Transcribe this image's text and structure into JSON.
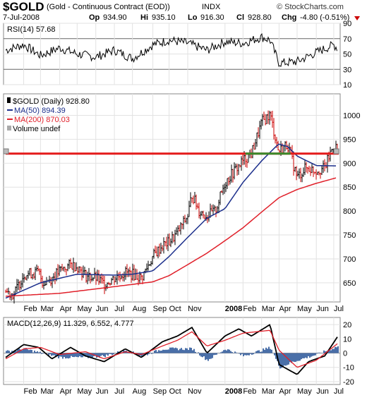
{
  "header": {
    "symbol": "$GOLD",
    "description": "(Gold - Continuous Contract (EOD))",
    "exchange": "INDX",
    "watermark": "© StockCharts.com",
    "date": "7-Jul-2008",
    "op_label": "Op",
    "op": "934.90",
    "hi_label": "Hi",
    "hi": "935.10",
    "lo_label": "Lo",
    "lo": "916.30",
    "cl_label": "Cl",
    "cl": "928.80",
    "chg_label": "Chg",
    "chg": "-4.80 (-0.51%)"
  },
  "colors": {
    "price_bar": "#000000",
    "down_bar": "#cc0000",
    "ma50": "#1c2f8c",
    "ma200": "#e0202a",
    "hline": "#e41a1a",
    "hline_overlap": "#3a8a2a",
    "macd": "#000000",
    "signal": "#e0202a",
    "histogram": "#4a6fa8",
    "rsi": "#000000",
    "rsi_fill": "#888888",
    "panel_bg": "#ffffff",
    "grid": "#e2e2e2"
  },
  "chart_data": [
    {
      "type": "line",
      "panel": "rsi",
      "label": "RSI(14) 57.68",
      "ylim": [
        10,
        90
      ],
      "yticks": [
        10,
        30,
        50,
        70,
        90
      ],
      "reference_lines": [
        30,
        70
      ],
      "x_range": [
        "2007-01-02",
        "2008-07-07"
      ],
      "series": [
        {
          "name": "RSI(14)",
          "x": [
            "2007-01-02",
            "2007-02-01",
            "2007-03-01",
            "2007-04-02",
            "2007-05-01",
            "2007-06-01",
            "2007-07-02",
            "2007-08-01",
            "2007-09-04",
            "2007-10-01",
            "2007-11-01",
            "2007-12-03",
            "2008-01-02",
            "2008-02-01",
            "2008-03-03",
            "2008-03-17",
            "2008-04-01",
            "2008-05-01",
            "2008-06-02",
            "2008-07-01",
            "2008-07-07"
          ],
          "values": [
            55,
            62,
            48,
            58,
            50,
            46,
            55,
            44,
            62,
            68,
            64,
            55,
            66,
            64,
            72,
            68,
            38,
            40,
            52,
            62,
            57.68
          ]
        }
      ]
    },
    {
      "type": "line",
      "panel": "price",
      "title": "$GOLD (Daily) 928.80",
      "ylim": [
        610,
        1045
      ],
      "yticks": [
        650,
        700,
        750,
        800,
        850,
        900,
        950,
        1000
      ],
      "x_range": [
        "2007-01-02",
        "2008-07-07"
      ],
      "xticks": [
        "Feb",
        "Mar",
        "Apr",
        "May",
        "Jun",
        "Jul",
        "Aug",
        "Sep",
        "Oct",
        "Nov",
        "2008",
        "Feb",
        "Mar",
        "Apr",
        "May",
        "Jun",
        "Jul"
      ],
      "horizontal_line": 920,
      "series": [
        {
          "name": "$GOLD (Daily) 928.80",
          "x": [
            "2007-01-02",
            "2007-01-16",
            "2007-02-01",
            "2007-02-26",
            "2007-03-05",
            "2007-03-20",
            "2007-04-02",
            "2007-04-20",
            "2007-05-01",
            "2007-05-15",
            "2007-06-01",
            "2007-06-15",
            "2007-07-02",
            "2007-07-20",
            "2007-08-01",
            "2007-08-16",
            "2007-09-04",
            "2007-09-20",
            "2007-10-01",
            "2007-10-15",
            "2007-11-01",
            "2007-11-08",
            "2007-11-20",
            "2007-12-03",
            "2007-12-17",
            "2008-01-02",
            "2008-01-15",
            "2008-02-01",
            "2008-02-15",
            "2008-03-03",
            "2008-03-17",
            "2008-03-31",
            "2008-04-15",
            "2008-05-01",
            "2008-05-15",
            "2008-06-02",
            "2008-06-16",
            "2008-07-01",
            "2008-07-07"
          ],
          "values": [
            632,
            626,
            668,
            672,
            650,
            660,
            675,
            688,
            685,
            665,
            660,
            648,
            660,
            672,
            668,
            660,
            705,
            728,
            735,
            755,
            790,
            835,
            800,
            790,
            800,
            860,
            880,
            905,
            920,
            985,
            1002,
            925,
            940,
            870,
            890,
            885,
            890,
            940,
            928.8
          ]
        },
        {
          "name": "MA(50) 894.39",
          "x": [
            "2007-01-02",
            "2007-03-01",
            "2007-05-01",
            "2007-07-02",
            "2007-08-01",
            "2007-09-04",
            "2007-10-01",
            "2007-11-01",
            "2007-12-03",
            "2008-01-02",
            "2008-02-01",
            "2008-03-03",
            "2008-03-31",
            "2008-04-15",
            "2008-05-01",
            "2008-06-02",
            "2008-07-07"
          ],
          "values": [
            618,
            650,
            668,
            666,
            668,
            675,
            705,
            745,
            785,
            805,
            860,
            905,
            940,
            935,
            915,
            895,
            894.39
          ]
        },
        {
          "name": "MA(200) 870.03",
          "x": [
            "2007-01-02",
            "2007-04-02",
            "2007-07-02",
            "2007-09-04",
            "2007-10-01",
            "2007-11-01",
            "2007-12-03",
            "2008-01-02",
            "2008-02-01",
            "2008-03-03",
            "2008-04-01",
            "2008-05-01",
            "2008-06-02",
            "2008-07-07"
          ],
          "values": [
            622,
            628,
            642,
            652,
            665,
            688,
            712,
            738,
            765,
            798,
            828,
            845,
            858,
            870.03
          ]
        }
      ],
      "legend": [
        "$GOLD (Daily) 928.80",
        "MA(50) 894.39",
        "MA(200) 870.03",
        "Volume undef"
      ]
    },
    {
      "type": "line",
      "panel": "macd",
      "label": "MACD(12,26,9) 11.329, 6.552, 4.777",
      "ylim": [
        -22,
        25
      ],
      "yticks": [
        -20,
        -10,
        0,
        10,
        20
      ],
      "x_range": [
        "2007-01-02",
        "2008-07-07"
      ],
      "xticks": [
        "Feb",
        "Mar",
        "Apr",
        "May",
        "Jun",
        "Jul",
        "Aug",
        "Sep",
        "Oct",
        "Nov",
        "2008",
        "Feb",
        "Mar",
        "Apr",
        "May",
        "Jun",
        "Jul"
      ],
      "series": [
        {
          "name": "MACD",
          "x": [
            "2007-01-02",
            "2007-02-01",
            "2007-02-26",
            "2007-03-20",
            "2007-04-20",
            "2007-05-15",
            "2007-06-15",
            "2007-07-20",
            "2007-08-16",
            "2007-09-20",
            "2007-10-15",
            "2007-11-08",
            "2007-12-03",
            "2008-01-02",
            "2008-01-25",
            "2008-02-15",
            "2008-03-17",
            "2008-04-01",
            "2008-05-01",
            "2008-05-20",
            "2008-06-16",
            "2008-07-07"
          ],
          "values": [
            -3,
            6,
            4,
            -4,
            4,
            -2,
            -6,
            3,
            -3,
            8,
            12,
            18,
            0,
            12,
            17,
            12,
            20,
            -8,
            -15,
            -6,
            -2,
            11.329
          ]
        },
        {
          "name": "Signal",
          "x": [
            "2007-01-02",
            "2007-02-01",
            "2007-03-01",
            "2007-04-02",
            "2007-05-15",
            "2007-06-15",
            "2007-07-20",
            "2007-08-16",
            "2007-09-20",
            "2007-10-15",
            "2007-11-08",
            "2007-12-03",
            "2008-01-02",
            "2008-02-01",
            "2008-03-17",
            "2008-04-01",
            "2008-05-01",
            "2008-06-02",
            "2008-07-07"
          ],
          "values": [
            -4,
            3,
            4,
            -1,
            1,
            -4,
            1,
            -1,
            5,
            9,
            15,
            5,
            9,
            14,
            16,
            2,
            -10,
            -5,
            6.552
          ]
        },
        {
          "name": "Histogram",
          "x": [
            "2007-01-02",
            "2007-02-01",
            "2007-03-01",
            "2007-04-02",
            "2007-05-15",
            "2007-06-15",
            "2007-07-20",
            "2007-08-16",
            "2007-09-20",
            "2007-10-15",
            "2007-11-08",
            "2007-12-03",
            "2008-01-02",
            "2008-02-01",
            "2008-03-17",
            "2008-04-01",
            "2008-05-01",
            "2008-06-02",
            "2008-07-07"
          ],
          "values": [
            1,
            3,
            0,
            -3,
            -3,
            -2,
            2,
            -2,
            3,
            3,
            3,
            -5,
            3,
            -2,
            4,
            -10,
            -5,
            -1,
            4.777
          ]
        }
      ]
    }
  ]
}
